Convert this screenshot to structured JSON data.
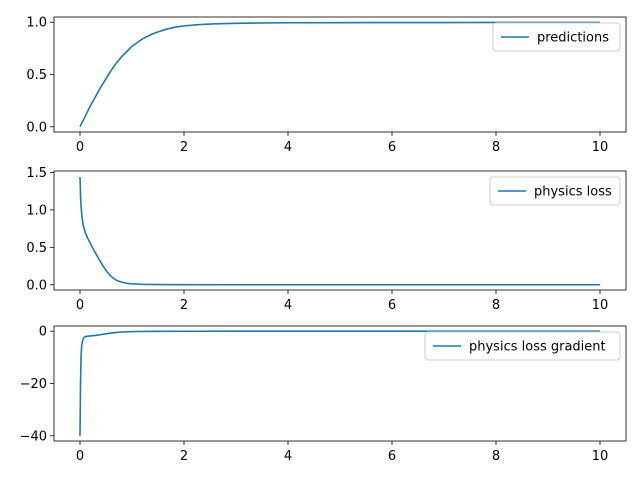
{
  "chart_data": [
    {
      "type": "line",
      "title": "",
      "xlabel": "",
      "ylabel": "",
      "xlim": [
        -0.5,
        10.5
      ],
      "ylim": [
        -0.05,
        1.05
      ],
      "xticks": [
        0,
        2,
        4,
        6,
        8,
        10
      ],
      "xtick_labels": [
        "0",
        "2",
        "4",
        "6",
        "8",
        "10"
      ],
      "yticks": [
        0.0,
        0.5,
        1.0
      ],
      "ytick_labels": [
        "0.0",
        "0.5",
        "1.0"
      ],
      "grid": false,
      "legend_position": "upper-right",
      "series": [
        {
          "name": "predictions",
          "color": "#1f77b4",
          "x": [
            0,
            0.1,
            0.2,
            0.3,
            0.4,
            0.5,
            0.6,
            0.7,
            0.8,
            0.9,
            1.0,
            1.2,
            1.4,
            1.6,
            1.8,
            2.0,
            2.3,
            2.6,
            3.0,
            3.5,
            4.0,
            5.0,
            6.0,
            7.0,
            8.0,
            9.0,
            10.0
          ],
          "y": [
            0.0,
            0.1,
            0.2,
            0.29,
            0.38,
            0.46,
            0.54,
            0.61,
            0.67,
            0.72,
            0.77,
            0.84,
            0.89,
            0.925,
            0.95,
            0.965,
            0.978,
            0.985,
            0.99,
            0.993,
            0.995,
            0.996,
            0.997,
            0.997,
            0.998,
            0.998,
            0.998
          ]
        }
      ]
    },
    {
      "type": "line",
      "title": "",
      "xlabel": "",
      "ylabel": "",
      "xlim": [
        -0.5,
        10.5
      ],
      "ylim": [
        -0.07,
        1.52
      ],
      "xticks": [
        0,
        2,
        4,
        6,
        8,
        10
      ],
      "xtick_labels": [
        "0",
        "2",
        "4",
        "6",
        "8",
        "10"
      ],
      "yticks": [
        0.0,
        0.5,
        1.0,
        1.5
      ],
      "ytick_labels": [
        "0.0",
        "0.5",
        "1.0",
        "1.5"
      ],
      "grid": false,
      "legend_position": "upper-right",
      "series": [
        {
          "name": "physics loss",
          "color": "#1f77b4",
          "x": [
            0,
            0.01,
            0.02,
            0.04,
            0.06,
            0.1,
            0.15,
            0.2,
            0.3,
            0.4,
            0.5,
            0.6,
            0.7,
            0.8,
            0.9,
            1.0,
            1.2,
            1.5,
            2.0,
            3.0,
            4.0,
            6.0,
            8.0,
            10.0
          ],
          "y": [
            1.44,
            1.2,
            1.05,
            0.9,
            0.8,
            0.7,
            0.62,
            0.55,
            0.42,
            0.3,
            0.19,
            0.11,
            0.06,
            0.035,
            0.02,
            0.012,
            0.006,
            0.003,
            0.001,
            0.0,
            0.0,
            0.0,
            0.0,
            0.0
          ]
        }
      ]
    },
    {
      "type": "line",
      "title": "",
      "xlabel": "",
      "ylabel": "",
      "xlim": [
        -0.5,
        10.5
      ],
      "ylim": [
        -42,
        2
      ],
      "xticks": [
        0,
        2,
        4,
        6,
        8,
        10
      ],
      "xtick_labels": [
        "0",
        "2",
        "4",
        "6",
        "8",
        "10"
      ],
      "yticks": [
        -40,
        -20,
        0
      ],
      "ytick_labels": [
        "−40",
        "−20",
        "0"
      ],
      "grid": false,
      "legend_position": "upper-right",
      "series": [
        {
          "name": "physics loss gradient",
          "color": "#1f77b4",
          "x": [
            0,
            0.005,
            0.01,
            0.02,
            0.03,
            0.05,
            0.07,
            0.1,
            0.15,
            0.2,
            0.3,
            0.4,
            0.5,
            0.6,
            0.7,
            0.8,
            1.0,
            1.2,
            1.5,
            2.0,
            3.0,
            5.0,
            10.0
          ],
          "y": [
            -40,
            -30,
            -20,
            -10,
            -6,
            -3.5,
            -2.5,
            -2.1,
            -1.9,
            -1.8,
            -1.6,
            -1.3,
            -1.0,
            -0.7,
            -0.45,
            -0.3,
            -0.15,
            -0.08,
            -0.03,
            -0.01,
            0.0,
            0.0,
            0.0
          ]
        }
      ]
    }
  ]
}
